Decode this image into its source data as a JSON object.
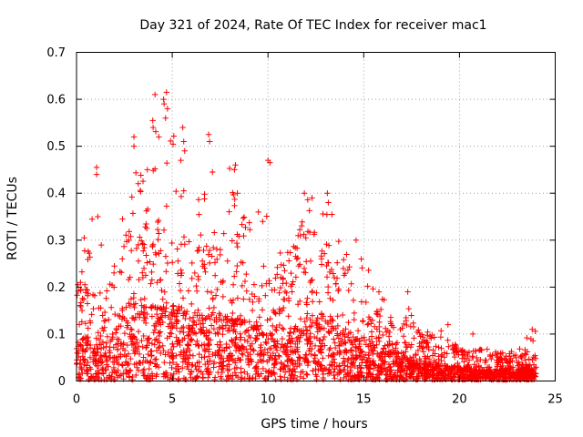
{
  "chart_data": {
    "type": "scatter",
    "title": "Day 321 of 2024, Rate Of TEC Index for receiver mac1",
    "xlabel": "GPS time / hours",
    "ylabel": "ROTI / TECUs",
    "xlim": [
      0,
      25
    ],
    "ylim": [
      0,
      0.7
    ],
    "x_ticks": [
      0,
      5,
      10,
      15,
      20,
      25
    ],
    "y_ticks": [
      0,
      0.1,
      0.2,
      0.3,
      0.4,
      0.5,
      0.6,
      0.7
    ],
    "x_tick_labels": [
      "0",
      "5",
      "10",
      "15",
      "20",
      "25"
    ],
    "y_tick_labels": [
      "0",
      "0.1",
      "0.2",
      "0.3",
      "0.4",
      "0.5",
      "0.6",
      "0.7"
    ],
    "grid": true,
    "marker": "+",
    "series_color": "#ff0000",
    "series": [
      {
        "name": "ROTI",
        "envelope": {
          "hours": [
            0,
            0.5,
            1,
            1.5,
            2,
            2.5,
            3,
            3.5,
            4,
            4.5,
            5,
            5.5,
            6,
            6.5,
            7,
            7.5,
            8,
            8.5,
            9,
            9.5,
            10,
            10.5,
            11,
            11.5,
            12,
            12.5,
            13,
            13.5,
            14,
            14.5,
            15,
            15.5,
            16,
            16.5,
            17,
            17.5,
            18,
            18.5,
            19,
            19.5,
            20,
            20.5,
            21,
            21.5,
            22,
            22.5,
            23,
            23.5,
            24
          ],
          "typical_max": [
            0.16,
            0.2,
            0.15,
            0.17,
            0.2,
            0.3,
            0.38,
            0.35,
            0.34,
            0.33,
            0.32,
            0.3,
            0.3,
            0.28,
            0.3,
            0.26,
            0.28,
            0.27,
            0.26,
            0.25,
            0.24,
            0.24,
            0.22,
            0.24,
            0.27,
            0.3,
            0.28,
            0.25,
            0.22,
            0.18,
            0.2,
            0.16,
            0.14,
            0.12,
            0.13,
            0.11,
            0.09,
            0.08,
            0.07,
            0.07,
            0.06,
            0.06,
            0.05,
            0.05,
            0.05,
            0.05,
            0.05,
            0.06,
            0.05
          ],
          "peak": [
            0.19,
            0.3,
            0.45,
            0.2,
            0.25,
            0.34,
            0.52,
            0.45,
            0.61,
            0.6,
            0.61,
            0.54,
            0.5,
            0.38,
            0.52,
            0.3,
            0.46,
            0.35,
            0.36,
            0.36,
            0.47,
            0.27,
            0.28,
            0.3,
            0.4,
            0.38,
            0.39,
            0.34,
            0.28,
            0.3,
            0.3,
            0.21,
            0.19,
            0.16,
            0.19,
            0.14,
            0.1,
            0.11,
            0.12,
            0.09,
            0.07,
            0.07,
            0.08,
            0.07,
            0.06,
            0.06,
            0.07,
            0.11,
            0.11
          ]
        },
        "outliers": [
          {
            "x": 0.4,
            "y": 0.305
          },
          {
            "x": 1.05,
            "y": 0.455
          },
          {
            "x": 1.05,
            "y": 0.44
          },
          {
            "x": 2.4,
            "y": 0.345
          },
          {
            "x": 3.0,
            "y": 0.52
          },
          {
            "x": 3.0,
            "y": 0.5
          },
          {
            "x": 3.7,
            "y": 0.45
          },
          {
            "x": 4.1,
            "y": 0.61
          },
          {
            "x": 4.0,
            "y": 0.54
          },
          {
            "x": 4.3,
            "y": 0.52
          },
          {
            "x": 4.55,
            "y": 0.6
          },
          {
            "x": 4.7,
            "y": 0.615
          },
          {
            "x": 4.75,
            "y": 0.58
          },
          {
            "x": 4.65,
            "y": 0.56
          },
          {
            "x": 5.55,
            "y": 0.54
          },
          {
            "x": 5.6,
            "y": 0.51
          },
          {
            "x": 5.65,
            "y": 0.49
          },
          {
            "x": 5.45,
            "y": 0.47
          },
          {
            "x": 6.9,
            "y": 0.525
          },
          {
            "x": 6.95,
            "y": 0.51
          },
          {
            "x": 7.1,
            "y": 0.445
          },
          {
            "x": 8.3,
            "y": 0.46
          },
          {
            "x": 8.25,
            "y": 0.45
          },
          {
            "x": 8.4,
            "y": 0.4
          },
          {
            "x": 9.5,
            "y": 0.36
          },
          {
            "x": 10.0,
            "y": 0.47
          },
          {
            "x": 10.1,
            "y": 0.465
          },
          {
            "x": 11.9,
            "y": 0.4
          },
          {
            "x": 12.3,
            "y": 0.39
          },
          {
            "x": 13.1,
            "y": 0.4
          },
          {
            "x": 13.15,
            "y": 0.38
          },
          {
            "x": 14.6,
            "y": 0.3
          },
          {
            "x": 17.3,
            "y": 0.19
          },
          {
            "x": 19.4,
            "y": 0.12
          },
          {
            "x": 20.7,
            "y": 0.1
          },
          {
            "x": 23.8,
            "y": 0.11
          }
        ]
      }
    ]
  }
}
